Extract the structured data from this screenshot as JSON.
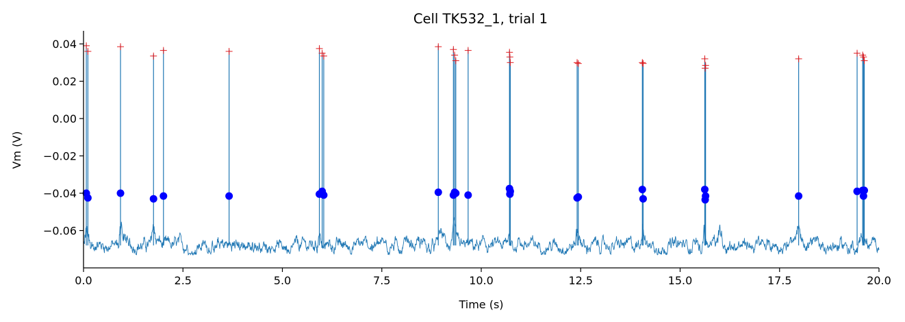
{
  "chart_data": {
    "type": "line",
    "title": "Cell TK532_1,  trial 1",
    "xlabel": "Time (s)",
    "ylabel": "Vm (V)",
    "xlim": [
      0,
      20
    ],
    "ylim": [
      -0.08,
      0.047
    ],
    "xticks": [
      0,
      2.5,
      5,
      7.5,
      10,
      12.5,
      15,
      17.5,
      20
    ],
    "xtick_labels": [
      "0.0",
      "2.5",
      "5.0",
      "7.5",
      "10.0",
      "12.5",
      "15.0",
      "17.5",
      "20.0"
    ],
    "yticks": [
      -0.06,
      -0.04,
      -0.02,
      0.0,
      0.02,
      0.04
    ],
    "ytick_labels": [
      "−0.06",
      "−0.04",
      "−0.02",
      "0.00",
      "0.02",
      "0.04"
    ],
    "grid": false,
    "colors": {
      "trace": "#1f77b4",
      "threshold": "#0000ff",
      "peak": "#e41a1c"
    },
    "baseline": {
      "mean": -0.068,
      "noise": 0.0025,
      "min": -0.073
    },
    "spikes": [
      {
        "t": 0.07,
        "threshold": -0.04,
        "peak": 0.039
      },
      {
        "t": 0.11,
        "threshold": -0.0425,
        "peak": 0.036
      },
      {
        "t": 0.93,
        "threshold": -0.04,
        "peak": 0.0385
      },
      {
        "t": 1.76,
        "threshold": -0.043,
        "peak": 0.0335
      },
      {
        "t": 2.01,
        "threshold": -0.0415,
        "peak": 0.0365
      },
      {
        "t": 3.66,
        "threshold": -0.0415,
        "peak": 0.036
      },
      {
        "t": 5.93,
        "threshold": -0.0405,
        "peak": 0.0375
      },
      {
        "t": 6.0,
        "threshold": -0.039,
        "peak": 0.035
      },
      {
        "t": 6.04,
        "threshold": -0.041,
        "peak": 0.0335
      },
      {
        "t": 8.92,
        "threshold": -0.0395,
        "peak": 0.0385
      },
      {
        "t": 9.3,
        "threshold": -0.041,
        "peak": 0.037
      },
      {
        "t": 9.33,
        "threshold": -0.0395,
        "peak": 0.034
      },
      {
        "t": 9.36,
        "threshold": -0.04,
        "peak": 0.031
      },
      {
        "t": 9.67,
        "threshold": -0.041,
        "peak": 0.0365
      },
      {
        "t": 10.71,
        "threshold": -0.0375,
        "peak": 0.0355
      },
      {
        "t": 10.72,
        "threshold": -0.0405,
        "peak": 0.033
      },
      {
        "t": 10.73,
        "threshold": -0.039,
        "peak": 0.03
      },
      {
        "t": 12.41,
        "threshold": -0.0425,
        "peak": 0.03
      },
      {
        "t": 12.44,
        "threshold": -0.042,
        "peak": 0.0295
      },
      {
        "t": 14.05,
        "threshold": -0.038,
        "peak": 0.03
      },
      {
        "t": 14.07,
        "threshold": -0.043,
        "peak": 0.0295
      },
      {
        "t": 15.62,
        "threshold": -0.038,
        "peak": 0.032
      },
      {
        "t": 15.64,
        "threshold": -0.0415,
        "peak": 0.0285
      },
      {
        "t": 15.63,
        "threshold": -0.0435,
        "peak": 0.027
      },
      {
        "t": 17.98,
        "threshold": -0.0415,
        "peak": 0.032
      },
      {
        "t": 19.45,
        "threshold": -0.039,
        "peak": 0.035
      },
      {
        "t": 19.59,
        "threshold": -0.0385,
        "peak": 0.034
      },
      {
        "t": 19.61,
        "threshold": -0.0415,
        "peak": 0.033
      },
      {
        "t": 19.63,
        "threshold": -0.0385,
        "peak": 0.031
      }
    ],
    "bumps": [
      {
        "t": 0.08,
        "amp": 0.012
      },
      {
        "t": 0.95,
        "amp": 0.018
      },
      {
        "t": 1.76,
        "amp": 0.012
      },
      {
        "t": 5.93,
        "amp": 0.01
      },
      {
        "t": 8.95,
        "amp": 0.01
      },
      {
        "t": 9.32,
        "amp": 0.012
      },
      {
        "t": 10.72,
        "amp": 0.008
      },
      {
        "t": 12.42,
        "amp": 0.012
      },
      {
        "t": 14.06,
        "amp": 0.012
      },
      {
        "t": 15.6,
        "amp": 0.016
      },
      {
        "t": 16.0,
        "amp": 0.01
      },
      {
        "t": 17.96,
        "amp": 0.012
      },
      {
        "t": 19.55,
        "amp": 0.01
      }
    ]
  }
}
